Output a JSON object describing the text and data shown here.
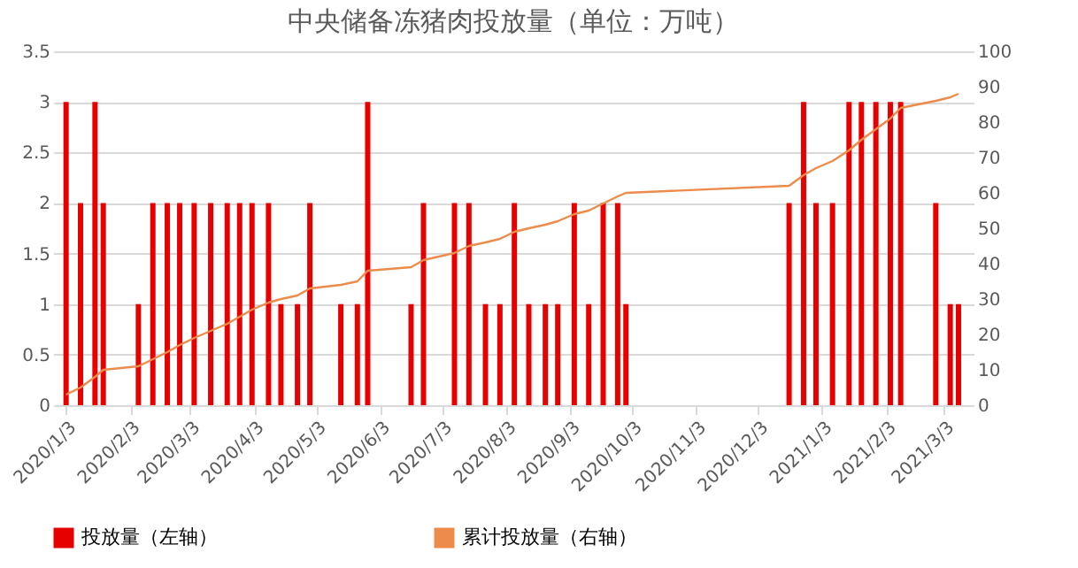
{
  "chart_data": {
    "type": "bar",
    "title": "中央储备冻猪肉投放量（单位：万吨）",
    "x": [
      "2020-01-03",
      "2020-01-10",
      "2020-01-17",
      "2020-01-21",
      "2020-02-07",
      "2020-02-14",
      "2020-02-21",
      "2020-02-27",
      "2020-03-05",
      "2020-03-13",
      "2020-03-21",
      "2020-03-27",
      "2020-04-02",
      "2020-04-10",
      "2020-04-16",
      "2020-04-24",
      "2020-04-30",
      "2020-05-15",
      "2020-05-23",
      "2020-05-28",
      "2020-06-18",
      "2020-06-24",
      "2020-07-09",
      "2020-07-16",
      "2020-07-24",
      "2020-07-31",
      "2020-08-07",
      "2020-08-14",
      "2020-08-22",
      "2020-08-28",
      "2020-09-05",
      "2020-09-12",
      "2020-09-19",
      "2020-09-26",
      "2020-09-30",
      "2020-12-18",
      "2020-12-25",
      "2020-12-31",
      "2021-01-08",
      "2021-01-16",
      "2021-01-22",
      "2021-01-29",
      "2021-02-05",
      "2021-02-10",
      "2021-02-27",
      "2021-03-06",
      "2021-03-10"
    ],
    "series": [
      {
        "name": "投放量（左轴）",
        "color": "#e60000",
        "values": [
          3,
          2,
          3,
          2,
          1,
          2,
          2,
          2,
          2,
          2,
          2,
          2,
          2,
          2,
          1,
          1,
          2,
          1,
          1,
          3,
          1,
          2,
          2,
          2,
          1,
          1,
          2,
          1,
          1,
          1,
          2,
          1,
          2,
          2,
          1,
          2,
          3,
          2,
          2,
          3,
          3,
          3,
          3,
          3,
          2,
          1,
          1
        ]
      },
      {
        "name": "累计投放量（右轴）",
        "type": "line",
        "axis": "y2",
        "color": "#ed8b4a",
        "values": [
          3,
          5,
          8,
          10,
          11,
          13,
          15,
          17,
          19,
          21,
          23,
          25,
          27,
          29,
          30,
          31,
          33,
          34,
          35,
          38,
          39,
          41,
          43,
          45,
          46,
          47,
          49,
          50,
          51,
          52,
          54,
          55,
          57,
          59,
          60,
          62,
          65,
          67,
          69,
          72,
          75,
          78,
          81,
          84,
          86,
          87,
          88
        ]
      }
    ],
    "xlim": [
      "2020-01-01",
      "2021-03-13"
    ],
    "xticks": [
      {
        "value": "2020-01-03",
        "label": "2020/1/3"
      },
      {
        "value": "2020-02-03",
        "label": "2020/2/3"
      },
      {
        "value": "2020-03-03",
        "label": "2020/3/3"
      },
      {
        "value": "2020-04-03",
        "label": "2020/4/3"
      },
      {
        "value": "2020-05-03",
        "label": "2020/5/3"
      },
      {
        "value": "2020-06-03",
        "label": "2020/6/3"
      },
      {
        "value": "2020-07-03",
        "label": "2020/7/3"
      },
      {
        "value": "2020-08-03",
        "label": "2020/8/3"
      },
      {
        "value": "2020-09-03",
        "label": "2020/9/3"
      },
      {
        "value": "2020-10-03",
        "label": "2020/10/3"
      },
      {
        "value": "2020-11-03",
        "label": "2020/11/3"
      },
      {
        "value": "2020-12-03",
        "label": "2020/12/3"
      },
      {
        "value": "2021-01-03",
        "label": "2021/1/3"
      },
      {
        "value": "2021-02-03",
        "label": "2021/2/3"
      },
      {
        "value": "2021-03-03",
        "label": "2021/3/3"
      }
    ],
    "ylim": [
      0,
      3.5
    ],
    "yticks": [
      0,
      0.5,
      1,
      1.5,
      2,
      2.5,
      3,
      3.5
    ],
    "y2lim": [
      0,
      100
    ],
    "y2ticks": [
      0,
      10,
      20,
      30,
      40,
      50,
      60,
      70,
      80,
      90,
      100
    ],
    "grid": "y",
    "legend": "bottom"
  }
}
